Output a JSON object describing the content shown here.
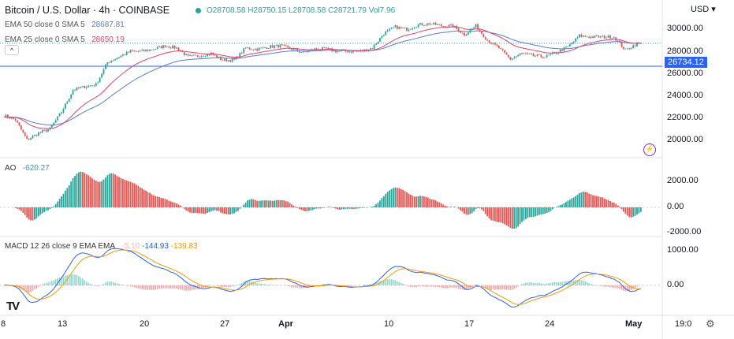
{
  "header": {
    "title": "Bitcoin / U.S. Dollar · 4h · COINBASE",
    "open": "O28708.58",
    "high": "H28750.15",
    "low": "L28708.58",
    "close": "C28721.79",
    "volume": "Vol7.96"
  },
  "indicators": {
    "ema50": {
      "label": "EMA 50 close 0 SMA 5",
      "value": "28687.81",
      "color": "#5b7bd5"
    },
    "ema25": {
      "label": "EMA 25 close 0 SMA 5",
      "value": "28650.19",
      "color": "#e0446b"
    },
    "ao": {
      "label": "AO",
      "value": "-620.27"
    },
    "macd": {
      "label": "MACD 12 26 close 9 EMA EMA",
      "hist": "-5.10",
      "macd": "-144.93",
      "signal": "-139.83"
    }
  },
  "price_axis": {
    "currency": "USD",
    "ticks": [
      "30000.00",
      "28000.00",
      "26000.00",
      "24000.00",
      "22000.00",
      "20000.00"
    ],
    "marker": "26734.12"
  },
  "ao_axis": {
    "ticks": [
      "2000.00",
      "0.00",
      "-2000.00"
    ]
  },
  "macd_axis": {
    "ticks": [
      "1000.00",
      "0.00"
    ]
  },
  "time_axis": {
    "labels": [
      "8",
      "13",
      "20",
      "27",
      "Apr",
      "10",
      "17",
      "24",
      "May",
      "19:0"
    ]
  },
  "colors": {
    "up": "#26a69a",
    "down": "#ef5350",
    "macd": "#2962ff",
    "signal": "#ff9800",
    "marker": "#2962ff"
  },
  "chart_data": {
    "type": "candlestick",
    "interval": "4h",
    "x_start": "Mar 8",
    "x_end": "May 2",
    "daily_close": [
      22200,
      21800,
      20000,
      20600,
      21000,
      22500,
      24500,
      24800,
      25000,
      27000,
      27500,
      28000,
      28000,
      28200,
      28500,
      28300,
      27500,
      27600,
      27800,
      27200,
      27200,
      28300,
      28200,
      28400,
      28500,
      28200,
      27900,
      28200,
      28200,
      28000,
      28000,
      28000,
      28300,
      29600,
      30200,
      30000,
      30400,
      30500,
      30300,
      30300,
      29500,
      30300,
      29000,
      28300,
      27300,
      27800,
      27600,
      27500,
      27900,
      28400,
      29400,
      29300,
      29300,
      29300,
      28100,
      28700
    ],
    "ylim": [
      19000,
      31000
    ],
    "horizontal_line": 26734.12,
    "current_price": 28721.79
  }
}
